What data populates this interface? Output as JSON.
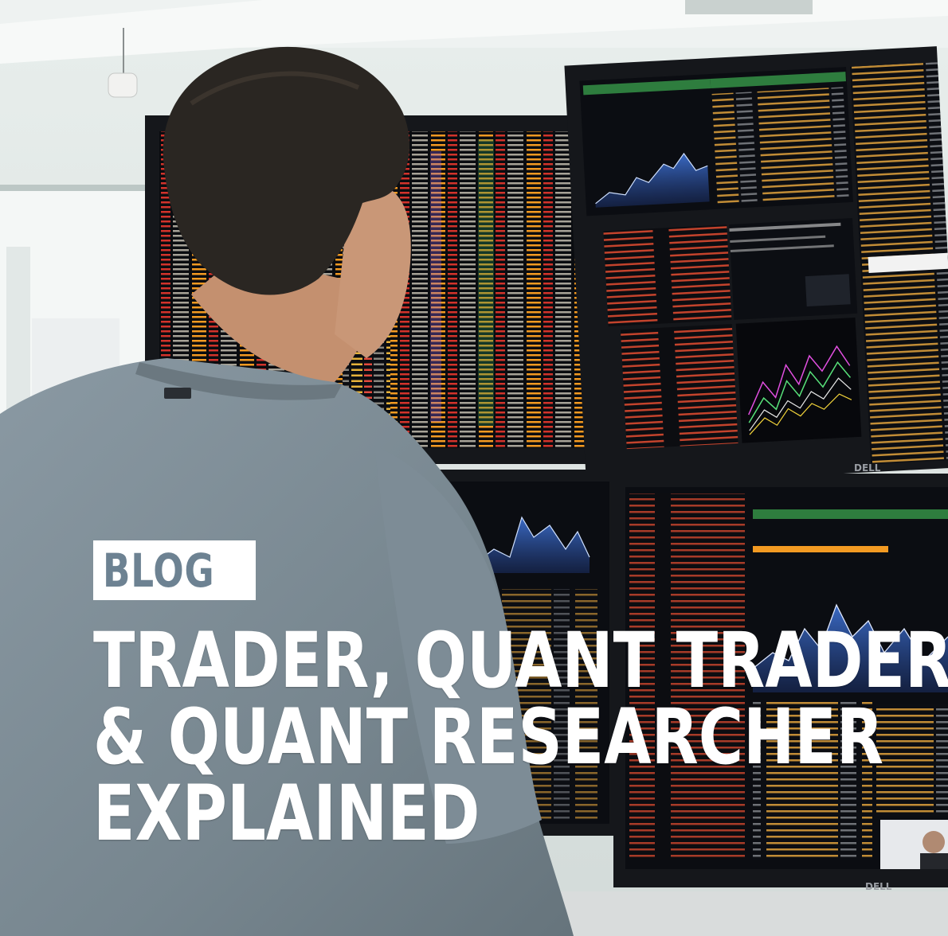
{
  "tag": {
    "label": "BLOG"
  },
  "headline": {
    "line1": "TRADER, QUANT TRADER",
    "line2": "& QUANT RESEARCHER",
    "line3": "EXPLAINED"
  },
  "monitor_brand": "DELL",
  "colors": {
    "wall": "#dfe7e5",
    "shirt": "#7f8f99",
    "hair": "#2a2622",
    "skin": "#c99777",
    "screen": "#0b0d12",
    "ticker_orange": "#f39a22",
    "ticker_red": "#d2332b",
    "chart_blue": "#2c5fc1",
    "tag_text": "#6d8292",
    "headline_text": "#ffffff"
  }
}
